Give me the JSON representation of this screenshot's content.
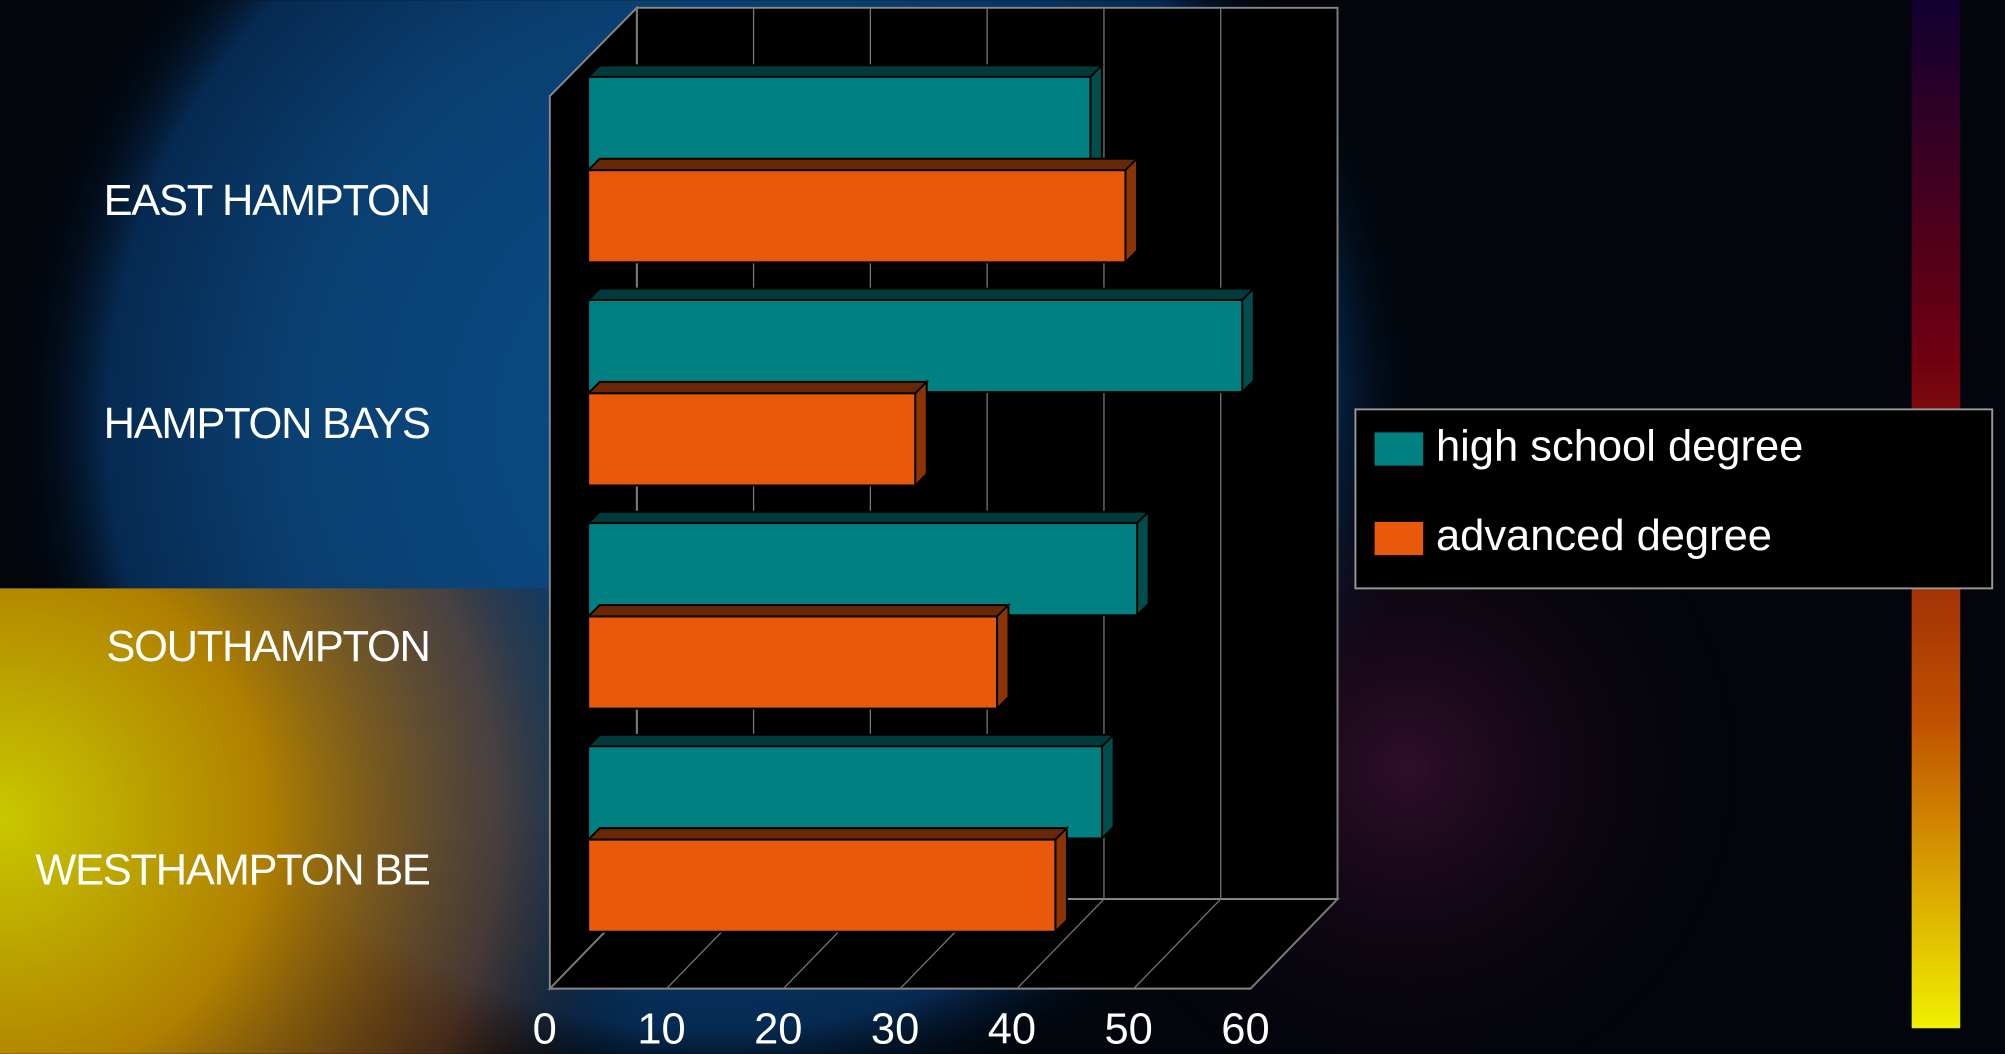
{
  "chart_data": {
    "type": "bar",
    "orientation": "horizontal",
    "categories": [
      "EAST HAMPTON",
      "HAMPTON BAYS",
      "SOUTHAMPTON",
      "WESTHAMPTON BE"
    ],
    "series": [
      {
        "name": "high school degree",
        "color": "#008080",
        "values": [
          43,
          56,
          47,
          44
        ]
      },
      {
        "name": "advanced degree",
        "color": "#e8590c",
        "values": [
          46,
          28,
          35,
          40
        ]
      }
    ],
    "xlim": [
      0,
      60
    ],
    "xticks": [
      0,
      10,
      20,
      30,
      40,
      50,
      60
    ],
    "grid": true,
    "legend": "right"
  }
}
